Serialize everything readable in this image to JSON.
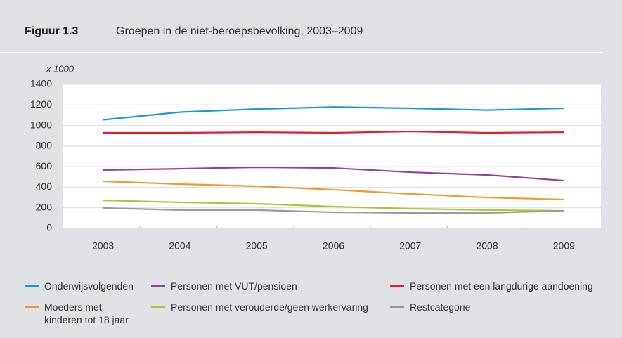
{
  "header": {
    "label": "Figuur 1.3"
  },
  "chart_data": {
    "type": "line",
    "title": "Groepen in de niet-beroepsbevolking, 2003–2009",
    "y_label": "x 1000",
    "categories": [
      "2003",
      "2004",
      "2005",
      "2006",
      "2007",
      "2008",
      "2009"
    ],
    "ylim": [
      0,
      1400
    ],
    "yticks": [
      0,
      200,
      400,
      600,
      800,
      1000,
      1200,
      1400
    ],
    "grid": true,
    "series": [
      {
        "name": "Onderwijsvolgenden",
        "color": "#1a9bd7",
        "values": [
          1055,
          1130,
          1160,
          1180,
          1168,
          1150,
          1168
        ]
      },
      {
        "name": "Personen met VUT/pensioen",
        "color": "#94419a",
        "values": [
          567,
          580,
          594,
          587,
          546,
          519,
          464
        ]
      },
      {
        "name": "Personen met een langdurige aandoening",
        "color": "#e3202a",
        "values": [
          929,
          929,
          935,
          929,
          942,
          929,
          935
        ]
      },
      {
        "name": "Moeders met kinderen tot 18 jaar",
        "color": "#f39a2e",
        "values": [
          458,
          430,
          410,
          376,
          335,
          300,
          280
        ]
      },
      {
        "name": "Personen met verouderde/geen werkervaring",
        "color": "#a9c72f",
        "values": [
          273,
          253,
          239,
          212,
          191,
          178,
          171
        ]
      },
      {
        "name": "Restcategorie",
        "color": "#9a9b9d",
        "values": [
          198,
          178,
          178,
          157,
          150,
          150,
          171
        ]
      }
    ]
  }
}
